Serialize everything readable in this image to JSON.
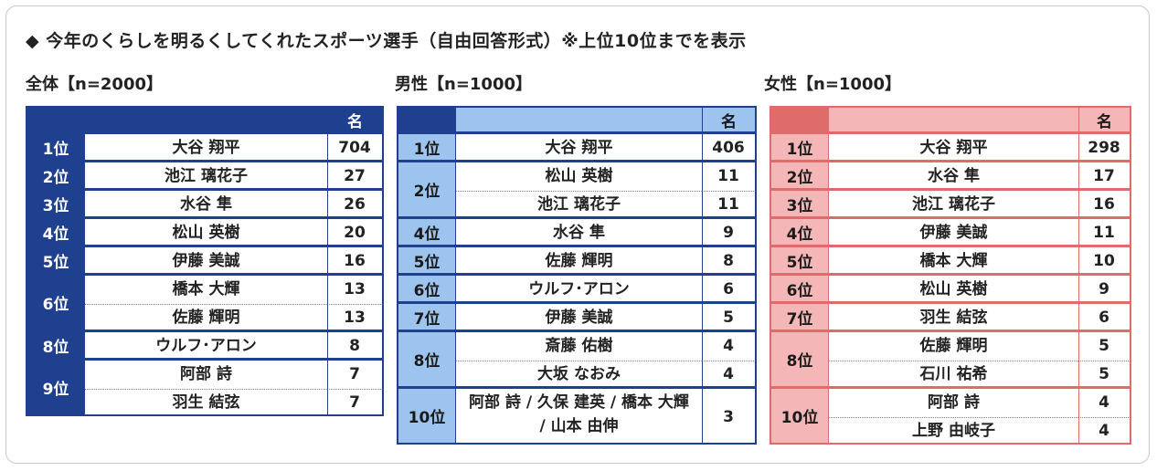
{
  "title": "◆ 今年のくらしを明るくしてくれたスポーツ選手（自由回答形式）※上位10位までを表示",
  "count_header": "名",
  "tables": [
    {
      "key": "all",
      "label": "全体【n=2000】",
      "colors": {
        "dark": "#1f3f8f",
        "light": "#1f3f8f",
        "text_on_dark": "#ffffff",
        "border": "#1f3f8f"
      },
      "rows": [
        {
          "rank": "1位",
          "entries": [
            {
              "name": "大谷 翔平",
              "count": "704"
            }
          ]
        },
        {
          "rank": "2位",
          "entries": [
            {
              "name": "池江 璃花子",
              "count": "27"
            }
          ]
        },
        {
          "rank": "3位",
          "entries": [
            {
              "name": "水谷 隼",
              "count": "26"
            }
          ]
        },
        {
          "rank": "4位",
          "entries": [
            {
              "name": "松山 英樹",
              "count": "20"
            }
          ]
        },
        {
          "rank": "5位",
          "entries": [
            {
              "name": "伊藤 美誠",
              "count": "16"
            }
          ]
        },
        {
          "rank": "6位",
          "entries": [
            {
              "name": "橋本 大輝",
              "count": "13"
            },
            {
              "name": "佐藤 輝明",
              "count": "13"
            }
          ]
        },
        {
          "rank": "8位",
          "entries": [
            {
              "name": "ウルフ･アロン",
              "count": "8"
            }
          ]
        },
        {
          "rank": "9位",
          "entries": [
            {
              "name": "阿部 詩",
              "count": "7"
            },
            {
              "name": "羽生 結弦",
              "count": "7"
            }
          ]
        }
      ]
    },
    {
      "key": "male",
      "label": "男性【n=1000】",
      "colors": {
        "dark": "#1f3f8f",
        "light": "#9dc3ef",
        "text_on_dark": "#1a1a1a",
        "border": "#1f3f8f"
      },
      "rows": [
        {
          "rank": "1位",
          "entries": [
            {
              "name": "大谷 翔平",
              "count": "406"
            }
          ]
        },
        {
          "rank": "2位",
          "entries": [
            {
              "name": "松山 英樹",
              "count": "11"
            },
            {
              "name": "池江 璃花子",
              "count": "11"
            }
          ]
        },
        {
          "rank": "4位",
          "entries": [
            {
              "name": "水谷 隼",
              "count": "9"
            }
          ]
        },
        {
          "rank": "5位",
          "entries": [
            {
              "name": "佐藤 輝明",
              "count": "8"
            }
          ]
        },
        {
          "rank": "6位",
          "entries": [
            {
              "name": "ウルフ･アロン",
              "count": "6"
            }
          ]
        },
        {
          "rank": "7位",
          "entries": [
            {
              "name": "伊藤 美誠",
              "count": "5"
            }
          ]
        },
        {
          "rank": "8位",
          "entries": [
            {
              "name": "斎藤 佑樹",
              "count": "4"
            },
            {
              "name": "大坂 なおみ",
              "count": "4"
            }
          ]
        },
        {
          "rank": "10位",
          "entries": [
            {
              "name": "阿部 詩 / 久保 建英 / 橋本 大輝 / 山本 由伸",
              "count": "3",
              "multiline": true
            }
          ]
        }
      ]
    },
    {
      "key": "female",
      "label": "女性【n=1000】",
      "colors": {
        "dark": "#e06b6b",
        "light": "#f4b6b6",
        "text_on_dark": "#1a1a1a",
        "border": "#e06b6b"
      },
      "rows": [
        {
          "rank": "1位",
          "entries": [
            {
              "name": "大谷 翔平",
              "count": "298"
            }
          ]
        },
        {
          "rank": "2位",
          "entries": [
            {
              "name": "水谷 隼",
              "count": "17"
            }
          ]
        },
        {
          "rank": "3位",
          "entries": [
            {
              "name": "池江 璃花子",
              "count": "16"
            }
          ]
        },
        {
          "rank": "4位",
          "entries": [
            {
              "name": "伊藤 美誠",
              "count": "11"
            }
          ]
        },
        {
          "rank": "5位",
          "entries": [
            {
              "name": "橋本 大輝",
              "count": "10"
            }
          ]
        },
        {
          "rank": "6位",
          "entries": [
            {
              "name": "松山 英樹",
              "count": "9"
            }
          ]
        },
        {
          "rank": "7位",
          "entries": [
            {
              "name": "羽生 結弦",
              "count": "6"
            }
          ]
        },
        {
          "rank": "8位",
          "entries": [
            {
              "name": "佐藤 輝明",
              "count": "5"
            },
            {
              "name": "石川 祐希",
              "count": "5"
            }
          ]
        },
        {
          "rank": "10位",
          "entries": [
            {
              "name": "阿部 詩",
              "count": "4"
            },
            {
              "name": "上野 由岐子",
              "count": "4"
            }
          ]
        }
      ]
    }
  ]
}
